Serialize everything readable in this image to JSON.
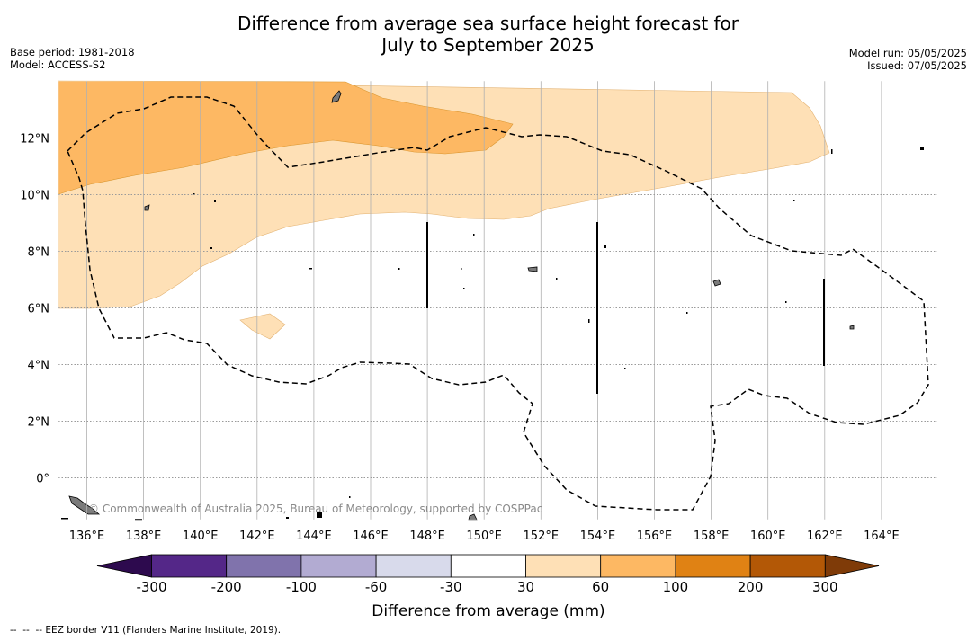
{
  "title": {
    "line1": "Difference from average sea surface height forecast for",
    "line2": "July to September 2025"
  },
  "meta_left": {
    "base_period": "Base period: 1981-2018",
    "model": "Model: ACCESS-S2"
  },
  "meta_right": {
    "model_run": "Model run: 05/05/2025",
    "issued": "Issued: 07/05/2025"
  },
  "map": {
    "lon_labels": [
      "136°E",
      "138°E",
      "140°E",
      "142°E",
      "144°E",
      "146°E",
      "148°E",
      "150°E",
      "152°E",
      "154°E",
      "156°E",
      "158°E",
      "160°E",
      "162°E",
      "164°E"
    ],
    "lat_labels": [
      "12°N",
      "10°N",
      "8°N",
      "6°N",
      "4°N",
      "2°N",
      "0°"
    ],
    "attribution": "© Commonwealth of Australia 2025, Bureau of Meteorology, supported by COSPPac"
  },
  "colorbar": {
    "ticks": [
      "-300",
      "-200",
      "-100",
      "-60",
      "-30",
      "30",
      "60",
      "100",
      "200",
      "300"
    ],
    "colors": [
      "#2d0a4e",
      "#542788",
      "#8073ac",
      "#b2abd2",
      "#d8daeb",
      "#ffffff",
      "#fee0b6",
      "#fdb863",
      "#e08214",
      "#b35806",
      "#7f3b08"
    ],
    "label": "Difference from average (mm)"
  },
  "footnote": "--  --  -- EEZ border V11 (Flanders Marine Institute, 2019)."
}
